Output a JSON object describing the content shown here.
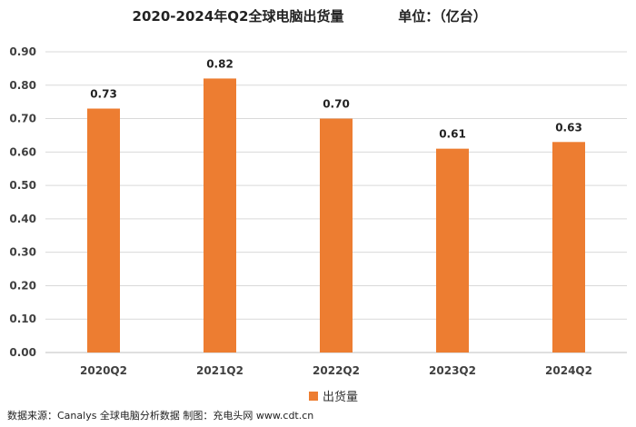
{
  "chart_data": {
    "type": "bar",
    "title": "2020-2024年Q2全球电脑出货量",
    "unit_label": "单位：（亿台）",
    "categories": [
      "2020Q2",
      "2021Q2",
      "2022Q2",
      "2023Q2",
      "2024Q2"
    ],
    "series": [
      {
        "name": "出货量",
        "values": [
          0.73,
          0.82,
          0.7,
          0.61,
          0.63
        ]
      }
    ],
    "data_labels": [
      "0.73",
      "0.82",
      "0.70",
      "0.61",
      "0.63"
    ],
    "y_ticks": [
      "0.00",
      "0.10",
      "0.20",
      "0.30",
      "0.40",
      "0.50",
      "0.60",
      "0.70",
      "0.80",
      "0.90"
    ],
    "ylim": [
      0,
      0.9
    ],
    "grid": true,
    "legend_position": "bottom",
    "bar_color": "#ED7D31",
    "grid_color": "#D9D9D9"
  },
  "source_note": "数据来源：Canalys 全球电脑分析数据   制图：充电头网 www.cdt.cn"
}
